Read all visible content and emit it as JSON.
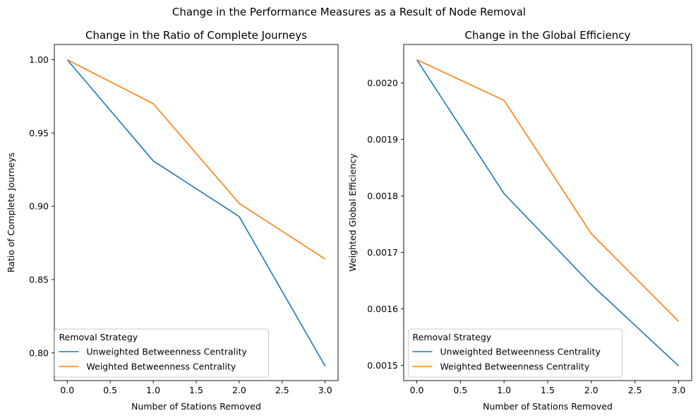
{
  "figure": {
    "title": "Change in the Performance Measures as a Result of Node Removal"
  },
  "colors": {
    "unweighted": "#1f77b4",
    "weighted": "#ff7f0e",
    "legend_border": "#cccccc"
  },
  "chart_data": [
    {
      "type": "line",
      "title": "Change in the Ratio of Complete Journeys",
      "xlabel": "Number of Stations Removed",
      "ylabel": "Ratio of Complete Journeys",
      "xlim": [
        -0.15,
        3.15
      ],
      "ylim": [
        0.7811,
        1.0104
      ],
      "xticks": [
        0.0,
        0.5,
        1.0,
        1.5,
        2.0,
        2.5,
        3.0
      ],
      "xtick_labels": [
        "0.0",
        "0.5",
        "1.0",
        "1.5",
        "2.0",
        "2.5",
        "3.0"
      ],
      "yticks": [
        0.8,
        0.85,
        0.9,
        0.95,
        1.0
      ],
      "ytick_labels": [
        "0.80",
        "0.85",
        "0.90",
        "0.95",
        "1.00"
      ],
      "grid": false,
      "legend": {
        "title": "Removal Strategy",
        "placement": "lower-left",
        "entries": [
          "Unweighted Betweenness Centrality",
          "Weighted Betweenness Centrality"
        ]
      },
      "x": [
        0,
        1,
        2,
        3
      ],
      "series": [
        {
          "name": "Unweighted Betweenness Centrality",
          "values": [
            1.0,
            0.931,
            0.893,
            0.791
          ]
        },
        {
          "name": "Weighted Betweenness Centrality",
          "values": [
            1.0,
            0.97,
            0.902,
            0.864
          ]
        }
      ]
    },
    {
      "type": "line",
      "title": "Change in the Global Efficiency",
      "xlabel": "Number of Stations Removed",
      "ylabel": "Weighted Global Efficiency",
      "xlim": [
        -0.15,
        3.15
      ],
      "ylim": [
        0.001473,
        0.002068
      ],
      "xticks": [
        0.0,
        0.5,
        1.0,
        1.5,
        2.0,
        2.5,
        3.0
      ],
      "xtick_labels": [
        "0.0",
        "0.5",
        "1.0",
        "1.5",
        "2.0",
        "2.5",
        "3.0"
      ],
      "yticks": [
        0.0015,
        0.0016,
        0.0017,
        0.0018,
        0.0019,
        0.002
      ],
      "ytick_labels": [
        "0.0015",
        "0.0016",
        "0.0017",
        "0.0018",
        "0.0019",
        "0.0020"
      ],
      "grid": false,
      "legend": {
        "title": "Removal Strategy",
        "placement": "lower-left",
        "entries": [
          "Unweighted Betweenness Centrality",
          "Weighted Betweenness Centrality"
        ]
      },
      "x": [
        0,
        1,
        2,
        3
      ],
      "series": [
        {
          "name": "Unweighted Betweenness Centrality",
          "values": [
            0.002041,
            0.001804,
            0.001643,
            0.001499
          ]
        },
        {
          "name": "Weighted Betweenness Centrality",
          "values": [
            0.002041,
            0.001969,
            0.001733,
            0.001578
          ]
        }
      ]
    }
  ]
}
